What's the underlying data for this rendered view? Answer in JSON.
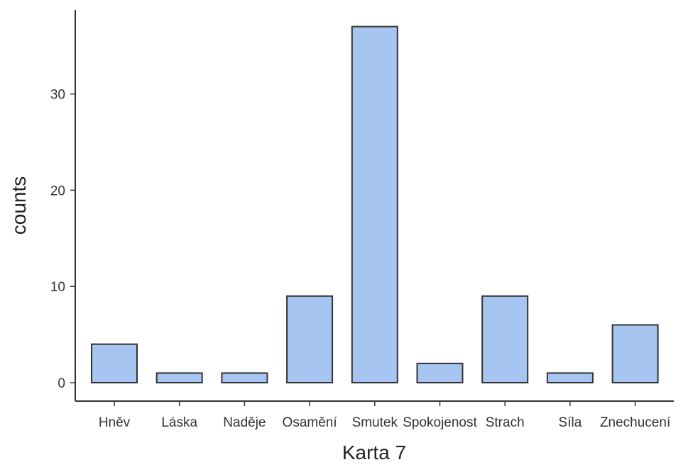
{
  "chart_data": {
    "type": "bar",
    "categories": [
      "Hněv",
      "Láska",
      "Naděje",
      "Osamění",
      "Smutek",
      "Spokojenost",
      "Strach",
      "Síla",
      "Znechucení"
    ],
    "values": [
      4,
      1,
      1,
      9,
      37,
      2,
      9,
      1,
      6
    ],
    "xlabel": "Karta 7",
    "ylabel": "counts",
    "yticks": [
      0,
      10,
      20,
      30
    ],
    "ylim": [
      -1.85,
      39
    ],
    "grid": false,
    "legend": "none",
    "bar_color": "#a6c5f0",
    "bar_edge_color": "#333333"
  }
}
